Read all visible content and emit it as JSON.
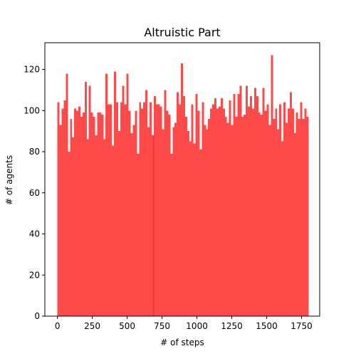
{
  "chart_data": {
    "type": "bar",
    "title": "Altruistic Part",
    "xlabel": "# of steps",
    "ylabel": "# of agents",
    "xlim": [
      -90,
      1880
    ],
    "ylim": [
      0,
      133
    ],
    "xticks": [
      0,
      250,
      500,
      750,
      1000,
      1250,
      1500,
      1750
    ],
    "yticks": [
      0,
      20,
      40,
      60,
      80,
      100,
      120
    ],
    "bar_color": "#ff4a4a",
    "grid": false,
    "legend": "none",
    "bin_start": 0,
    "bin_width": 15,
    "values": [
      104,
      93,
      101,
      105,
      118,
      80,
      96,
      87,
      101,
      100,
      102,
      97,
      99,
      114,
      86,
      112,
      99,
      97,
      88,
      99,
      99,
      98,
      86,
      118,
      103,
      103,
      83,
      119,
      104,
      90,
      104,
      112,
      103,
      118,
      100,
      89,
      93,
      100,
      79,
      104,
      101,
      104,
      110,
      92,
      104,
      88,
      107,
      103,
      103,
      102,
      91,
      110,
      100,
      98,
      79,
      92,
      94,
      109,
      103,
      123,
      107,
      97,
      90,
      85,
      103,
      84,
      108,
      100,
      81,
      104,
      93,
      91,
      96,
      101,
      103,
      106,
      101,
      102,
      106,
      101,
      97,
      94,
      105,
      93,
      108,
      97,
      108,
      112,
      97,
      98,
      112,
      102,
      107,
      101,
      111,
      107,
      99,
      98,
      111,
      100,
      103,
      93,
      127,
      96,
      101,
      91,
      103,
      85,
      104,
      94,
      101,
      109,
      101,
      89,
      99,
      96,
      104,
      96,
      101,
      97
    ],
    "marker_bin_edge": 690
  }
}
